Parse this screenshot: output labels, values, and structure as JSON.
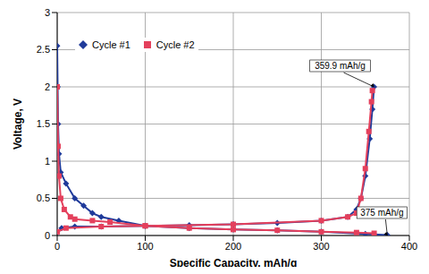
{
  "chart_data": {
    "type": "line",
    "x_label": "Specific Capacity, mAh/g",
    "y_label": "Voltage, V",
    "xlim": [
      0,
      400
    ],
    "xticks": [
      0,
      100,
      200,
      300,
      400
    ],
    "ylim": [
      0,
      3
    ],
    "yticks": [
      0,
      0.5,
      1,
      1.5,
      2,
      2.5,
      3
    ],
    "grid": true,
    "legend": "top-left",
    "series": [
      {
        "name": "Cycle #1",
        "color": "#1f3a9a",
        "marker": "diamond",
        "x": [
          0,
          0.5,
          1,
          2,
          4,
          10,
          20,
          30,
          40,
          50,
          70,
          100,
          150,
          200,
          250,
          300,
          350,
          375,
          null,
          0,
          5,
          20,
          50,
          100,
          150,
          200,
          250,
          300,
          330,
          340,
          345,
          350,
          355,
          358,
          359.9
        ],
        "values": [
          2.55,
          2.0,
          1.5,
          1.1,
          0.85,
          0.7,
          0.5,
          0.4,
          0.3,
          0.25,
          0.2,
          0.13,
          0.1,
          0.08,
          0.07,
          0.05,
          0.02,
          0.005,
          null,
          0.05,
          0.1,
          0.12,
          0.12,
          0.13,
          0.14,
          0.15,
          0.17,
          0.2,
          0.25,
          0.35,
          0.5,
          0.8,
          1.3,
          1.7,
          2.0
        ]
      },
      {
        "name": "Cycle #2",
        "color": "#e4405c",
        "marker": "square",
        "x": [
          0,
          1,
          2,
          4,
          8,
          15,
          20,
          40,
          60,
          100,
          150,
          200,
          250,
          300,
          340,
          360,
          null,
          0,
          10,
          50,
          100,
          200,
          300,
          330,
          340,
          345,
          350,
          354,
          357,
          358
        ],
        "values": [
          2.0,
          1.2,
          0.8,
          0.5,
          0.35,
          0.25,
          0.22,
          0.2,
          0.18,
          0.13,
          0.1,
          0.08,
          0.07,
          0.05,
          0.04,
          0.03,
          null,
          0.05,
          0.1,
          0.12,
          0.13,
          0.15,
          0.2,
          0.25,
          0.3,
          0.5,
          0.9,
          1.4,
          1.8,
          1.95
        ]
      }
    ],
    "annotations": [
      {
        "text": "359.9 mAh/g",
        "x": 359.9,
        "y": 2.0
      },
      {
        "text": "375 mAh/g",
        "x": 375,
        "y": 0
      }
    ]
  }
}
